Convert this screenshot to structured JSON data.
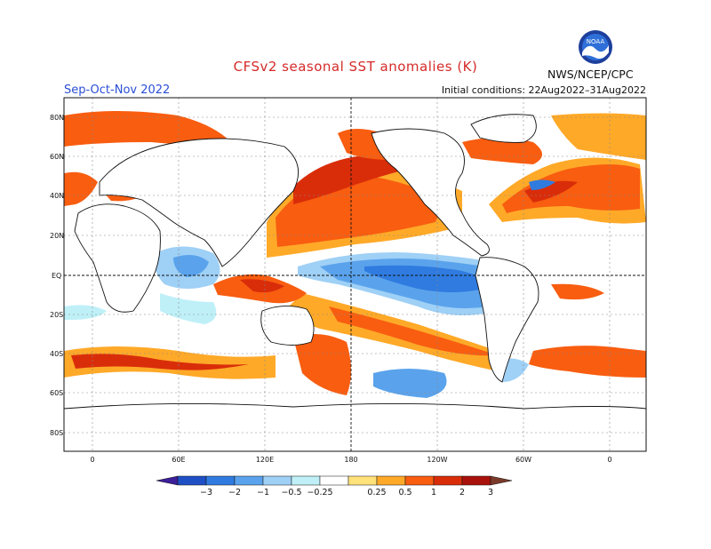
{
  "header": {
    "title": "CFSv2 seasonal SST anomalies (K)",
    "season": "Sep-Oct-Nov 2022",
    "initial_conditions": "Initial conditions: 22Aug2022–31Aug2022",
    "agency": "NWS/NCEP/CPC",
    "logo_text": "NOAA"
  },
  "axes": {
    "lat_ticks": [
      "80N",
      "60N",
      "40N",
      "20N",
      "EQ",
      "20S",
      "40S",
      "60S",
      "80S"
    ],
    "lon_ticks": [
      "0",
      "60E",
      "120E",
      "180",
      "120W",
      "60W",
      "0"
    ]
  },
  "colorbar": {
    "labels": [
      "−3",
      "−2",
      "−1",
      "−0.5",
      "−0.25",
      "0.25",
      "0.5",
      "1",
      "2",
      "3"
    ],
    "colors": [
      "#3d1f99",
      "#1f4fc4",
      "#2f7be0",
      "#5aa3ec",
      "#9fd0f6",
      "#bff0f8",
      "#ffffff",
      "#ffe27a",
      "#ffa928",
      "#f85d10",
      "#d92d0a",
      "#a8120a",
      "#7a3a2a"
    ]
  },
  "icons": {
    "logo": "noaa-logo-icon"
  }
}
